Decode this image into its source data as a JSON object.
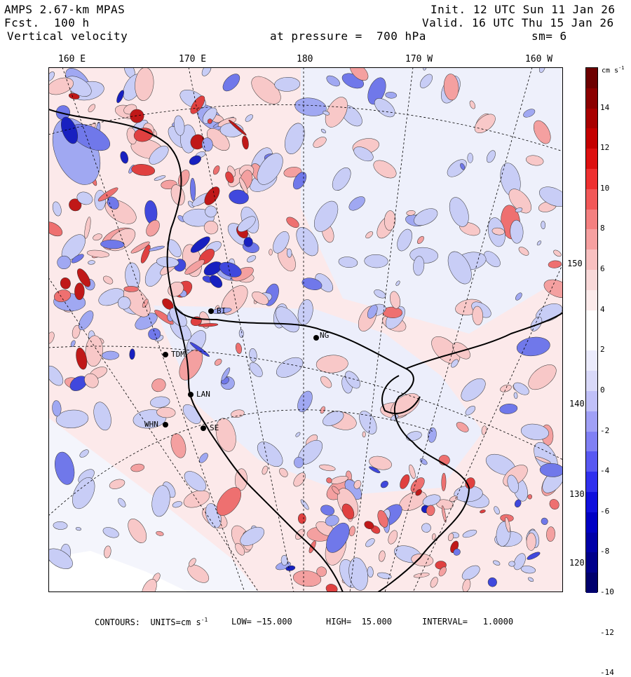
{
  "header": {
    "model": "AMPS 2.67-km MPAS",
    "fcst_label": "Fcst.",
    "fcst_value": "100 h",
    "field": "Vertical velocity",
    "init_label": "Init.",
    "init_value": "12 UTC Sun 11 Jan 26",
    "valid_label": "Valid.",
    "valid_value": "16 UTC Thu 15 Jan 26",
    "pressure_text": "at pressure =  700 hPa",
    "smooth_text": "sm= 6"
  },
  "longitude_labels": [
    "160 E",
    "170 E",
    "180",
    "170 W",
    "160 W"
  ],
  "latitude_labels": [
    "150 W",
    "140 W",
    "130 W",
    "120 W"
  ],
  "stations": [
    "BI",
    "NG",
    "TDM",
    "LAN",
    "WHN",
    "SE"
  ],
  "colorbar": {
    "unit": "cm s",
    "unit_exp": "-1",
    "ticks": [
      "14",
      "12",
      "10",
      "8",
      "6",
      "4",
      "2",
      "0",
      "-2",
      "-4",
      "-6",
      "-8",
      "-10",
      "-12",
      "-14"
    ],
    "colors": [
      "#6d0000",
      "#8b0000",
      "#a80000",
      "#c40000",
      "#dd1010",
      "#ee3030",
      "#f25858",
      "#f48080",
      "#f6a0a0",
      "#f8c0c0",
      "#f9d9d9",
      "#fcebeb",
      "#ffffff",
      "#ffffff",
      "#ebebfc",
      "#d9d9f9",
      "#c0c0f8",
      "#a0a0f6",
      "#8080f4",
      "#5858f2",
      "#3030ee",
      "#1010dd",
      "#0000c4",
      "#0000a8",
      "#00008b",
      "#00006d"
    ]
  },
  "footer": {
    "contours_label": "CONTOURS:",
    "units_label": "UNITS=cm s",
    "units_exp": "-1",
    "low": "LOW= −15.000",
    "high": "HIGH=  15.000",
    "interval": "INTERVAL=   1.0000"
  }
}
